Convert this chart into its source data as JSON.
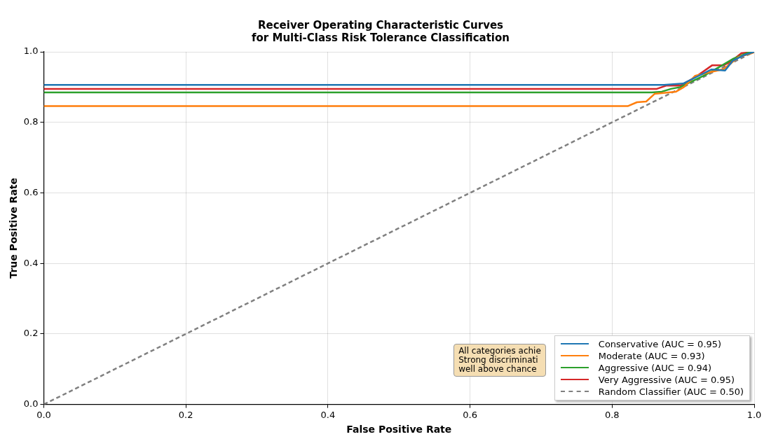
{
  "chart_data": {
    "type": "line",
    "title": "Receiver Operating Characteristic Curves\nfor Multi-Class Risk Tolerance Classification",
    "xlabel": "False Positive Rate",
    "ylabel": "True Positive Rate",
    "xlim": [
      0,
      1
    ],
    "ylim": [
      0,
      1
    ],
    "xticks": [
      {
        "value": 0,
        "label": "0.0"
      },
      {
        "value": 0.2,
        "label": "0.2"
      },
      {
        "value": 0.4,
        "label": "0.4"
      },
      {
        "value": 0.6,
        "label": "0.6"
      },
      {
        "value": 0.8,
        "label": "0.8"
      },
      {
        "value": 1,
        "label": "1.0"
      }
    ],
    "yticks": [
      {
        "value": 0,
        "label": "0.0"
      },
      {
        "value": 0.2,
        "label": "0.2"
      },
      {
        "value": 0.4,
        "label": "0.4"
      },
      {
        "value": 0.6,
        "label": "0.6"
      },
      {
        "value": 0.8,
        "label": "0.8"
      },
      {
        "value": 1,
        "label": "1.0"
      }
    ],
    "grid": true,
    "legend": "bottom right",
    "marker": "none",
    "series": [
      {
        "name": "Conservative (AUC = 0.95)",
        "color": "#1f77b4",
        "x": [
          0,
          0.873,
          0.9,
          0.92,
          0.94,
          0.959,
          0.97,
          0.985,
          1
        ],
        "values": [
          0.906,
          0.906,
          0.91,
          0.93,
          0.95,
          0.947,
          0.975,
          0.99,
          1
        ]
      },
      {
        "name": "Moderate (AUC = 0.93)",
        "color": "#ff7f0e",
        "x": [
          0,
          0.822,
          0.835,
          0.848,
          0.86,
          0.87,
          0.89,
          0.901,
          0.917,
          0.937,
          0.957,
          0.978,
          0.998,
          1
        ],
        "values": [
          0.846,
          0.846,
          0.857,
          0.859,
          0.881,
          0.883,
          0.887,
          0.9,
          0.932,
          0.942,
          0.951,
          0.985,
          0.997,
          1
        ]
      },
      {
        "name": "Aggressive (AUC = 0.94)",
        "color": "#2ca02c",
        "x": [
          0,
          0.856,
          0.87,
          0.883,
          0.896,
          0.911,
          0.931,
          0.951,
          0.971,
          0.992,
          1
        ],
        "values": [
          0.885,
          0.885,
          0.887,
          0.895,
          0.9,
          0.915,
          0.934,
          0.957,
          0.981,
          0.998,
          1
        ]
      },
      {
        "name": "Very Aggressive (AUC = 0.95)",
        "color": "#d62728",
        "x": [
          0,
          0.863,
          0.876,
          0.896,
          0.917,
          0.941,
          0.957,
          0.967,
          0.982,
          1
        ],
        "values": [
          0.895,
          0.895,
          0.904,
          0.904,
          0.928,
          0.962,
          0.962,
          0.972,
          0.996,
          1
        ]
      },
      {
        "name": "Random Classifier (AUC = 0.50)",
        "color": "#808080",
        "line_style": "dashed",
        "x": [
          0,
          1
        ],
        "values": [
          0,
          1
        ]
      }
    ],
    "annotations": [
      "All categories achie\nStrong discriminati\nwell above chance"
    ]
  }
}
